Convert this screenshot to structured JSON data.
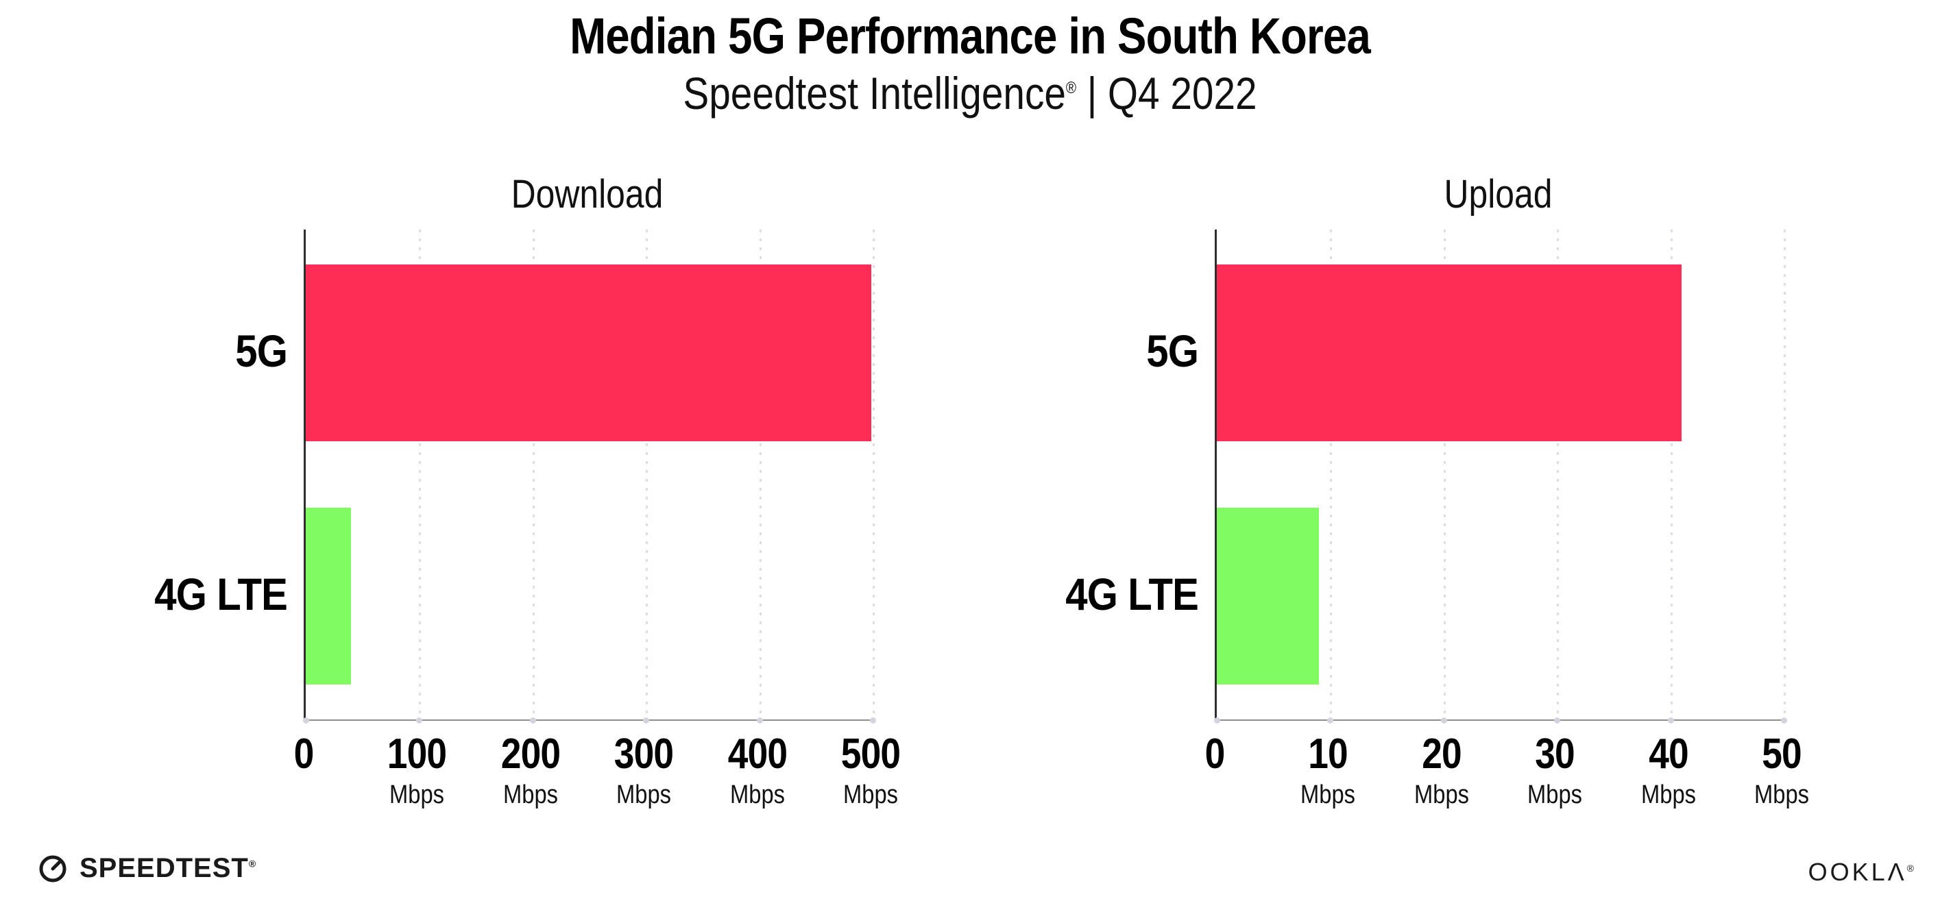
{
  "header": {
    "title": "Median 5G Performance in South Korea",
    "subtitle_brand": "Speedtest Intelligence",
    "subtitle_reg": "®",
    "subtitle_sep": "|",
    "subtitle_period": "Q4 2022"
  },
  "chart_data": [
    {
      "type": "bar",
      "orientation": "horizontal",
      "title": "Download",
      "categories": [
        "5G",
        "4G LTE"
      ],
      "values": [
        499,
        40
      ],
      "unit": "Mbps",
      "xlim": [
        0,
        500
      ],
      "xticks": [
        0,
        100,
        200,
        300,
        400,
        500
      ],
      "bar_colors": [
        "#fd2d56",
        "#80fb62"
      ],
      "grid": "vertical-dotted",
      "legend": "none"
    },
    {
      "type": "bar",
      "orientation": "horizontal",
      "title": "Upload",
      "categories": [
        "5G",
        "4G LTE"
      ],
      "values": [
        41,
        9
      ],
      "unit": "Mbps",
      "xlim": [
        0,
        50
      ],
      "xticks": [
        0,
        10,
        20,
        30,
        40,
        50
      ],
      "bar_colors": [
        "#fd2d56",
        "#80fb62"
      ],
      "grid": "vertical-dotted",
      "legend": "none"
    }
  ],
  "footer": {
    "speedtest_label": "SPEEDTEST",
    "speedtest_reg": "®",
    "ookla_label": "OOKLΛ",
    "ookla_reg": "®"
  },
  "colors": {
    "bar_5g": "#fd2d56",
    "bar_4g_lte": "#80fb62",
    "gridline": "#dcdce6",
    "axis_left": "#2f2f2f",
    "axis_bottom": "#8f8f8f",
    "text": "#000000"
  }
}
